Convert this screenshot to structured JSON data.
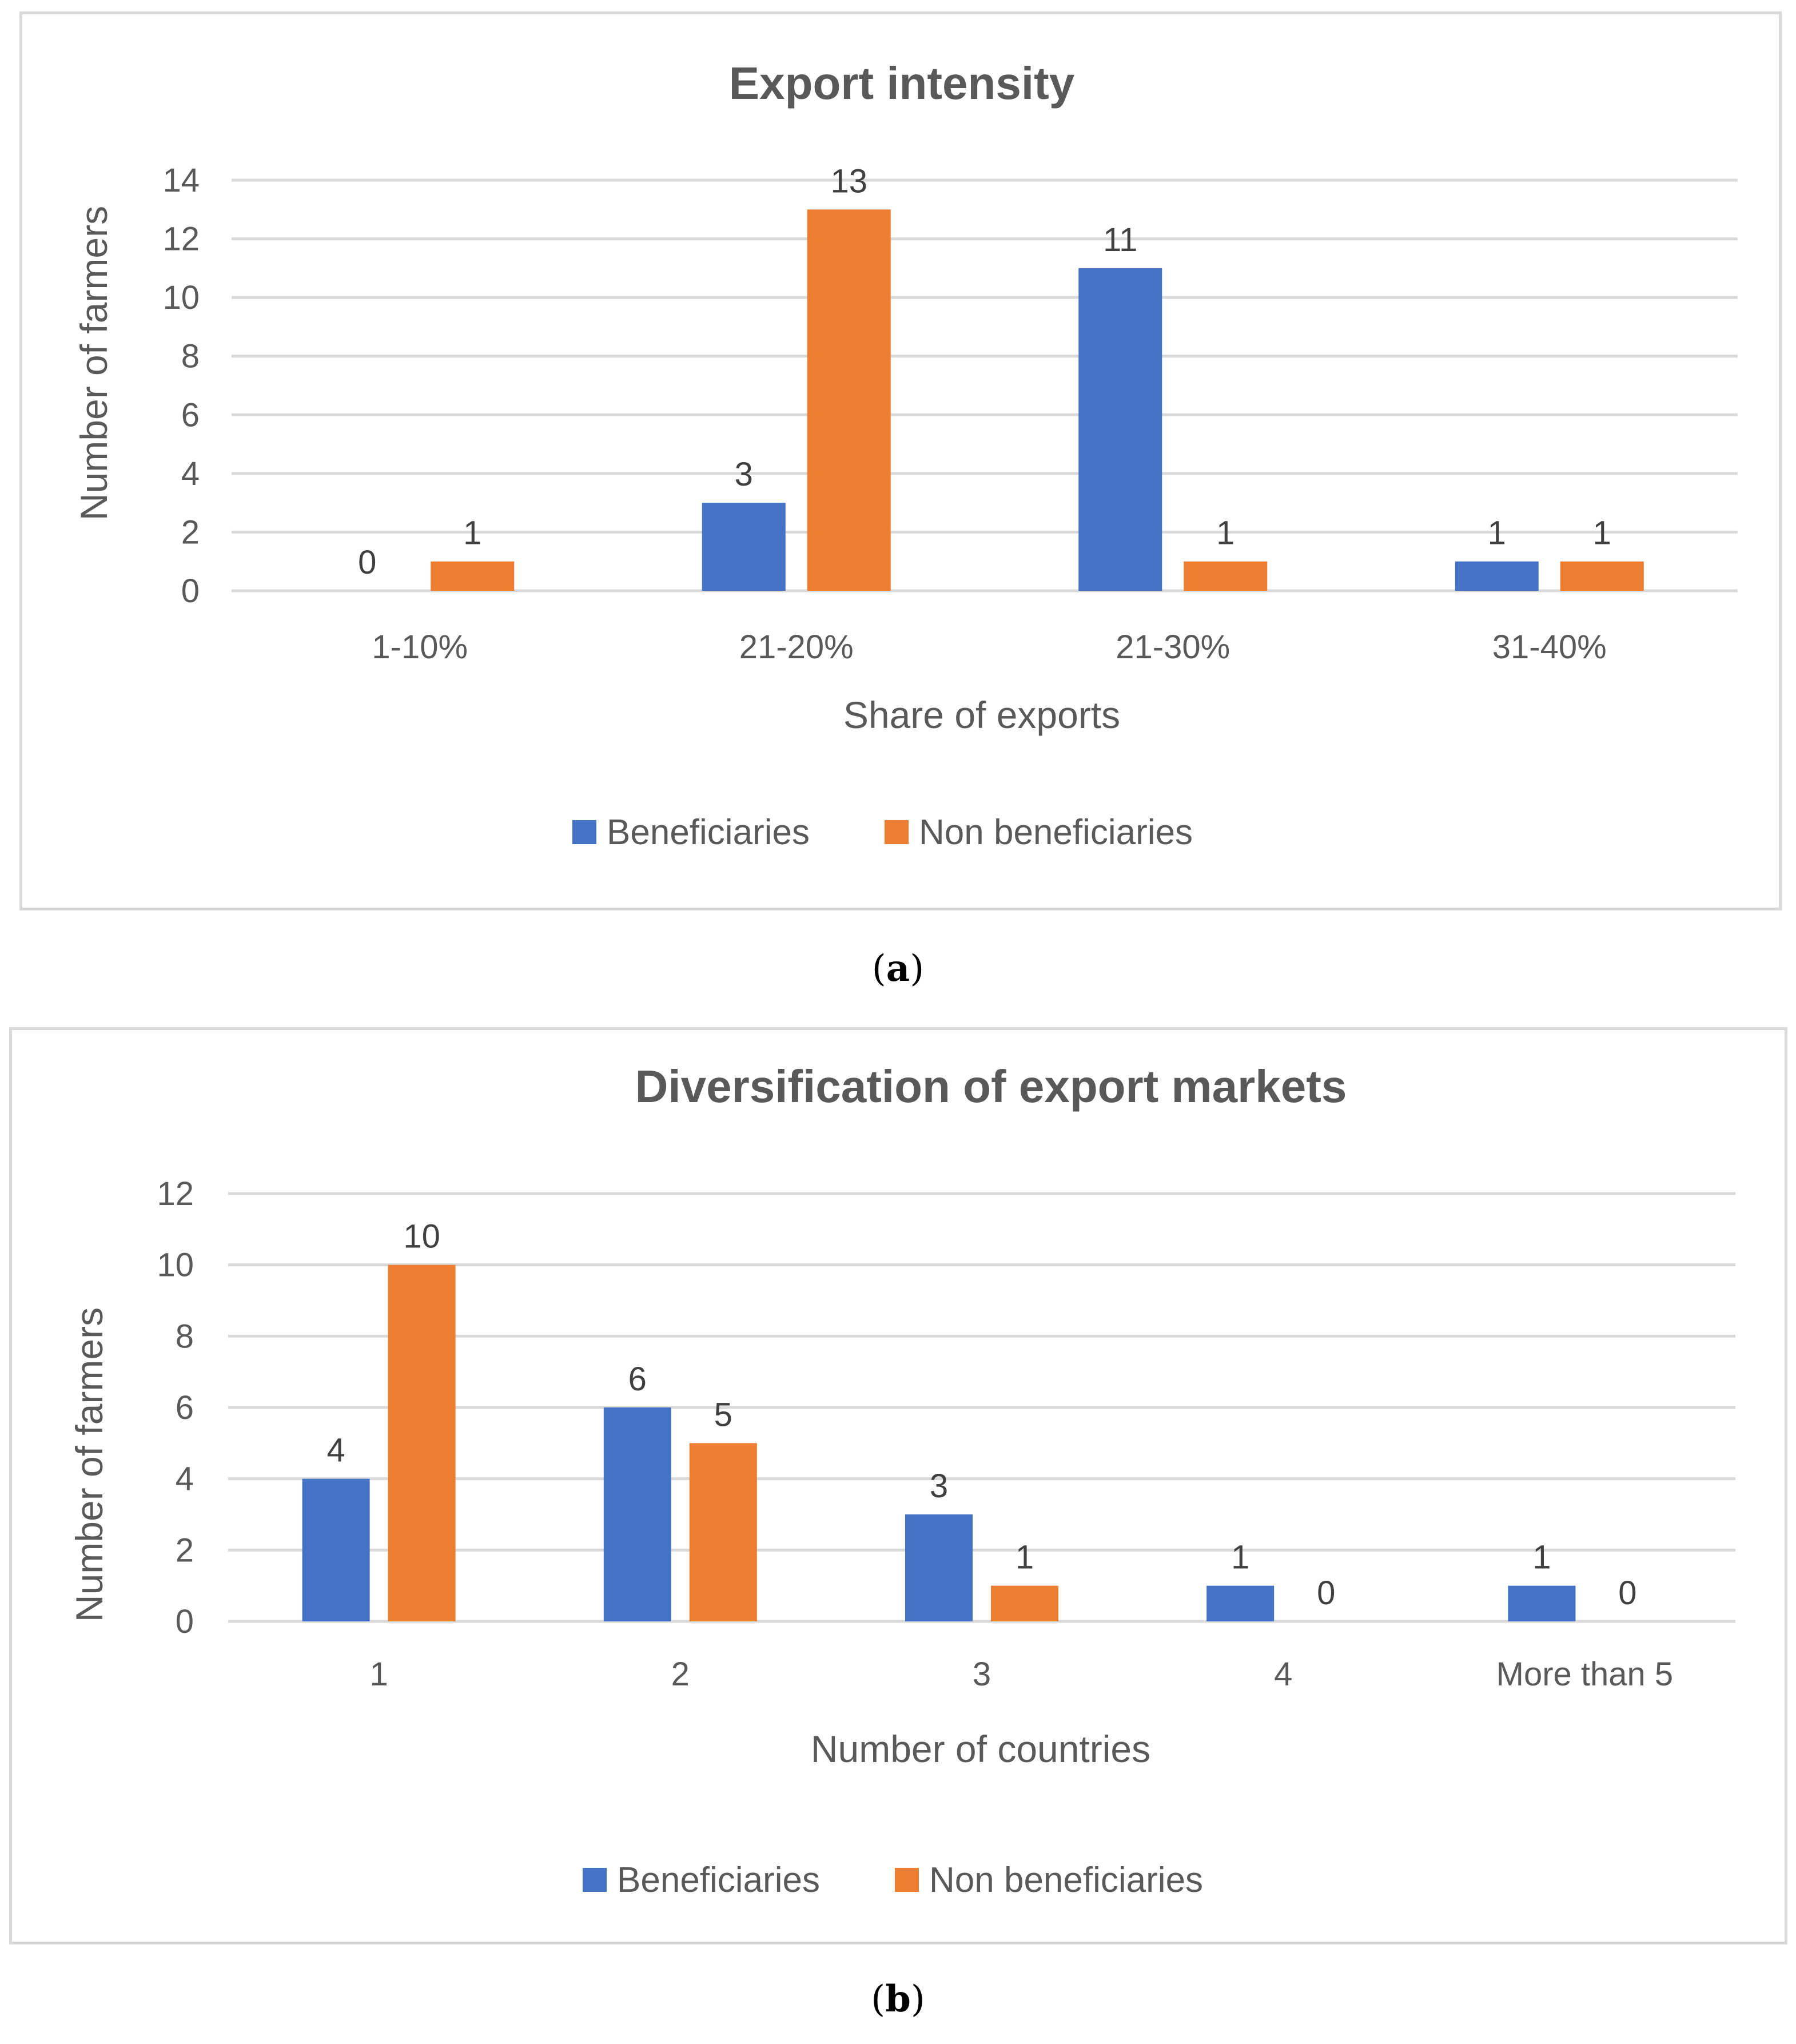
{
  "chart_data": [
    {
      "type": "bar",
      "title": "Export intensity",
      "xlabel": "Share of exports",
      "ylabel": "Number of farmers",
      "categories": [
        "1-10%",
        "21-20%",
        "21-30%",
        "31-40%"
      ],
      "series": [
        {
          "name": "Beneficiaries",
          "values": [
            0,
            3,
            11,
            1
          ],
          "color": "#4472c4"
        },
        {
          "name": "Non beneficiaries",
          "values": [
            1,
            13,
            1,
            1
          ],
          "color": "#ed7d31"
        }
      ],
      "ylim": [
        0,
        14
      ],
      "yticks": [
        "0",
        "2",
        "4",
        "6",
        "8",
        "10",
        "12",
        "14"
      ],
      "grid": true,
      "legend_position": "bottom",
      "caption": "a"
    },
    {
      "type": "bar",
      "title": "Diversification of export markets",
      "xlabel": "Number of countries",
      "ylabel": "Number of farmers",
      "categories": [
        "1",
        "2",
        "3",
        "4",
        "More than 5"
      ],
      "series": [
        {
          "name": "Beneficiaries",
          "values": [
            4,
            6,
            3,
            1,
            1
          ],
          "color": "#4472c4"
        },
        {
          "name": "Non beneficiaries",
          "values": [
            10,
            5,
            1,
            0,
            0
          ],
          "color": "#ed7d31"
        }
      ],
      "ylim": [
        0,
        12
      ],
      "yticks": [
        "0",
        "2",
        "4",
        "6",
        "8",
        "10",
        "12"
      ],
      "grid": true,
      "legend_position": "bottom",
      "caption": "b"
    }
  ]
}
